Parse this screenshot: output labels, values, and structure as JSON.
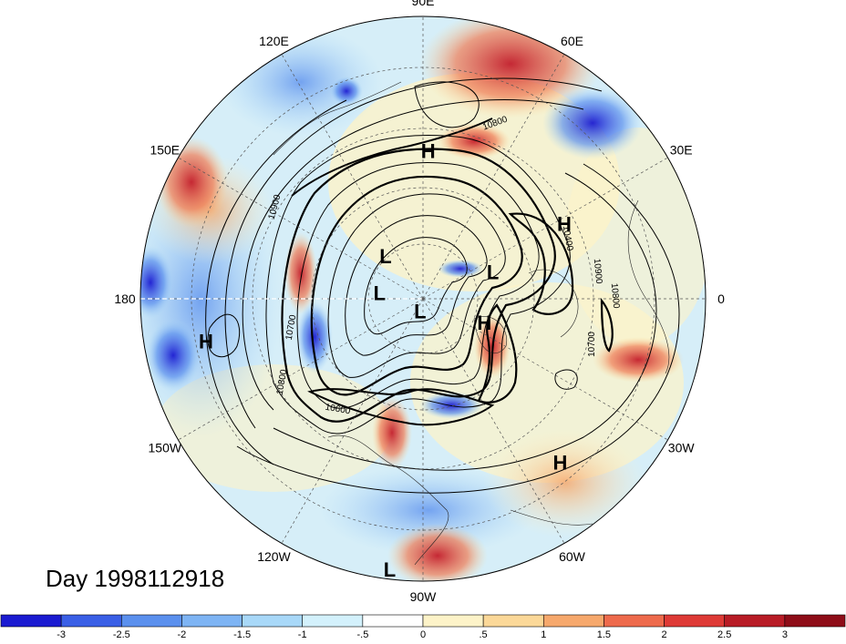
{
  "title": {
    "prefix": "Day",
    "date": "1998112918"
  },
  "longitude_labels": [
    {
      "label": "90E",
      "lon": 90
    },
    {
      "label": "60E",
      "lon": 60
    },
    {
      "label": "30E",
      "lon": 30
    },
    {
      "label": "0",
      "lon": 0
    },
    {
      "label": "30W",
      "lon": -30
    },
    {
      "label": "60W",
      "lon": -60
    },
    {
      "label": "90W",
      "lon": -90
    },
    {
      "label": "120W",
      "lon": -120
    },
    {
      "label": "150W",
      "lon": -150
    },
    {
      "label": "180",
      "lon": 180
    },
    {
      "label": "150E",
      "lon": 150
    },
    {
      "label": "120E",
      "lon": 120
    }
  ],
  "pressure_centers": [
    {
      "label": "H",
      "lon": 88,
      "lat": 26
    },
    {
      "label": "H",
      "lon": 28,
      "lat": 22
    },
    {
      "label": "H",
      "lon": -21,
      "lat": 59
    },
    {
      "label": "H",
      "lon": -50,
      "lat": 6
    },
    {
      "label": "H",
      "lon": -169,
      "lat": 4
    },
    {
      "label": "L",
      "lon": 131,
      "lat": 63
    },
    {
      "label": "L",
      "lon": 21,
      "lat": 55
    },
    {
      "label": "L",
      "lon": 172,
      "lat": 69
    },
    {
      "label": "L",
      "lon": -103,
      "lat": 84
    },
    {
      "label": "L",
      "lon": -97,
      "lat": -8
    }
  ],
  "contour_labels": [
    "10800",
    "10900",
    "10700",
    "10800",
    "10600",
    "10400",
    "10900",
    "10800",
    "10700"
  ],
  "colorbar": {
    "ticks": [
      "-3",
      "-2.5",
      "-2",
      "-1.5",
      "-1",
      "-.5",
      "0",
      ".5",
      "1",
      "1.5",
      "2",
      "2.5",
      "3"
    ],
    "colors": [
      "#1b1bd1",
      "#3a5fe6",
      "#5b90ee",
      "#7eb4f4",
      "#a8d8f8",
      "#d3f1fc",
      "#ffffff",
      "#fdf3c8",
      "#fbd898",
      "#f6a86c",
      "#ee6a4c",
      "#de3a36",
      "#b81c26",
      "#8e0d18"
    ]
  },
  "map": {
    "projection": "north polar stereographic",
    "shading": "anomaly",
    "contours": "geopotential height",
    "southern_boundary_lat": -10
  }
}
